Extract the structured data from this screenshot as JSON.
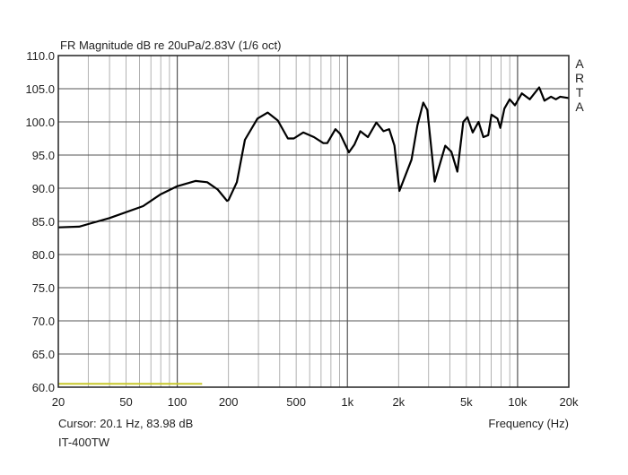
{
  "chart_data": {
    "type": "line",
    "title": "FR Magnitude dB re 20uPa/2.83V (1/6 oct)",
    "xlabel": "Frequency (Hz)",
    "ylabel": "",
    "xscale": "log",
    "xlim": [
      20,
      20000
    ],
    "ylim": [
      60,
      110
    ],
    "grid": true,
    "x_tick_labels": [
      {
        "v": 20,
        "label": "20"
      },
      {
        "v": 50,
        "label": "50"
      },
      {
        "v": 100,
        "label": "100"
      },
      {
        "v": 200,
        "label": "200"
      },
      {
        "v": 500,
        "label": "500"
      },
      {
        "v": 1000,
        "label": "1k"
      },
      {
        "v": 2000,
        "label": "2k"
      },
      {
        "v": 5000,
        "label": "5k"
      },
      {
        "v": 10000,
        "label": "10k"
      },
      {
        "v": 20000,
        "label": "20k"
      }
    ],
    "y_tick_labels": [
      {
        "v": 110,
        "label": "110.0"
      },
      {
        "v": 105,
        "label": "105.0"
      },
      {
        "v": 100,
        "label": "100.0"
      },
      {
        "v": 95,
        "label": "95.0"
      },
      {
        "v": 90,
        "label": "90.0"
      },
      {
        "v": 85,
        "label": "85.0"
      },
      {
        "v": 80,
        "label": "80.0"
      },
      {
        "v": 75,
        "label": "75.0"
      },
      {
        "v": 70,
        "label": "70.0"
      },
      {
        "v": 65,
        "label": "65.0"
      },
      {
        "v": 60,
        "label": "60.0"
      }
    ],
    "series": [
      {
        "color": "#000000",
        "x": [
          20,
          26.5,
          30,
          40,
          63,
          80,
          100,
          128,
          150,
          173,
          196,
          200,
          224,
          250,
          296,
          340,
          390,
          447,
          484,
          550,
          636,
          722,
          762,
          850,
          906,
          1020,
          1100,
          1190,
          1320,
          1480,
          1630,
          1760,
          1890,
          2020,
          2380,
          2580,
          2790,
          2950,
          3260,
          3760,
          4080,
          4430,
          4800,
          5070,
          5450,
          5900,
          6300,
          6720,
          7020,
          7620,
          7920,
          8370,
          8990,
          9650,
          10600,
          11800,
          13400,
          14400,
          15700,
          16800,
          17800,
          20000
        ],
        "y": [
          84.1,
          84.2,
          84.6,
          85.5,
          87.3,
          89.1,
          90.3,
          91.1,
          90.9,
          89.8,
          88.1,
          88.2,
          90.9,
          97.3,
          100.5,
          101.4,
          100.2,
          97.5,
          97.5,
          98.4,
          97.7,
          96.8,
          96.8,
          98.9,
          98.2,
          95.4,
          96.6,
          98.6,
          97.7,
          99.9,
          98.6,
          98.9,
          96.4,
          89.6,
          94.3,
          99.5,
          102.9,
          101.8,
          91.0,
          96.4,
          95.5,
          92.5,
          100.0,
          100.7,
          98.4,
          100.0,
          97.7,
          98.0,
          101.1,
          100.5,
          99.1,
          102.0,
          103.4,
          102.5,
          104.3,
          103.4,
          105.2,
          103.2,
          103.8,
          103.4,
          103.8,
          103.6
        ]
      },
      {
        "color": "#c8c82a",
        "x": [
          20,
          140
        ],
        "y": [
          60.5,
          60.5
        ]
      }
    ]
  },
  "watermark": "ARTA",
  "cursor_readout": "Cursor: 20.1 Hz, 83.98 dB",
  "device_name": "IT-400TW"
}
